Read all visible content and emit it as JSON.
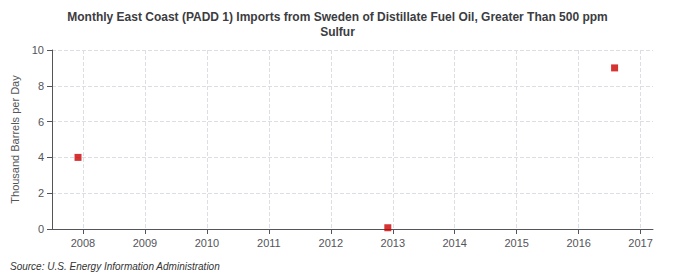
{
  "chart_data": {
    "type": "scatter",
    "title": "Monthly East Coast (PADD 1) Imports from Sweden of Distillate Fuel Oil, Greater Than 500 ppm\nSulfur",
    "ylabel": "Thousand Barrels per Day",
    "source": "Source: U.S. Energy Information Administration",
    "x": [
      2007.92,
      2012.92,
      2016.58
    ],
    "values": [
      4.0,
      0.07,
      9.0
    ],
    "color": "#cc0000",
    "marker": "square",
    "xlim": [
      2007.5,
      2017.2
    ],
    "ylim": [
      0,
      10
    ],
    "xticks": [
      2008,
      2009,
      2010,
      2011,
      2012,
      2013,
      2014,
      2015,
      2016,
      2017
    ],
    "yticks": [
      0,
      2,
      4,
      6,
      8,
      10
    ],
    "grid": true
  }
}
